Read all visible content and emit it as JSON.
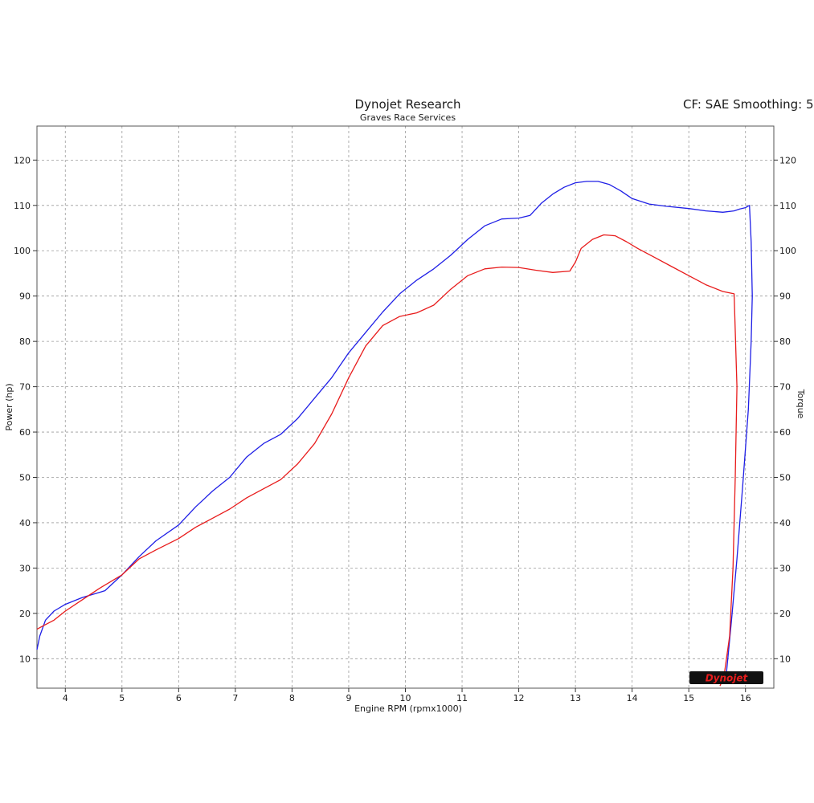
{
  "header": {
    "title": "Dynojet Research",
    "subtitle": "Graves Race Services",
    "cf_label": "CF: SAE Smoothing: 5"
  },
  "logo_text": "Dynojet",
  "chart_data": {
    "type": "line",
    "title": "Dynojet Research",
    "subtitle": "Graves Race Services",
    "xlabel": "Engine RPM (rpmx1000)",
    "ylabel": "Power (hp)",
    "y2label": "Torque",
    "xlim": [
      3.5,
      16.5
    ],
    "ylim": [
      3.5,
      127.5
    ],
    "xticks": [
      4,
      5,
      6,
      7,
      8,
      9,
      10,
      11,
      12,
      13,
      14,
      15,
      16
    ],
    "yticks": [
      10,
      20,
      30,
      40,
      50,
      60,
      70,
      80,
      90,
      100,
      110,
      120
    ],
    "grid": true,
    "colors": {
      "blue": "#1f1fe6",
      "red": "#e81c1c"
    },
    "series": [
      {
        "color": "#1f1fe6",
        "x": [
          3.5,
          3.55,
          3.65,
          3.8,
          4.0,
          4.3,
          4.7,
          5.0,
          5.3,
          5.6,
          6.0,
          6.3,
          6.6,
          6.9,
          7.2,
          7.5,
          7.8,
          8.1,
          8.4,
          8.7,
          9.0,
          9.3,
          9.6,
          9.9,
          10.2,
          10.5,
          10.8,
          11.1,
          11.4,
          11.7,
          12.0,
          12.2,
          12.4,
          12.6,
          12.8,
          13.0,
          13.2,
          13.4,
          13.6,
          13.8,
          14.0,
          14.3,
          14.6,
          15.0,
          15.3,
          15.6,
          15.8,
          15.9,
          16.0,
          16.07,
          16.1,
          16.12,
          16.1,
          16.05,
          15.95,
          15.85,
          15.75,
          15.65
        ],
        "y": [
          12,
          15,
          18.5,
          20.5,
          22,
          23.5,
          25,
          28.5,
          32.5,
          36,
          39.5,
          43.5,
          47,
          50,
          54.5,
          57.5,
          59.5,
          63,
          67.5,
          72,
          77.5,
          82,
          86.5,
          90.5,
          93.5,
          96,
          99,
          102.5,
          105.5,
          107,
          107.2,
          107.8,
          110.5,
          112.5,
          114,
          115,
          115.3,
          115.3,
          114.6,
          113.2,
          111.5,
          110.3,
          109.8,
          109.3,
          108.8,
          108.5,
          108.8,
          109.2,
          109.5,
          110,
          102,
          90,
          80,
          65,
          48,
          32,
          18,
          5
        ]
      },
      {
        "color": "#e81c1c",
        "x": [
          3.5,
          3.6,
          3.8,
          4.0,
          4.3,
          4.6,
          5.0,
          5.3,
          5.6,
          6.0,
          6.3,
          6.6,
          6.9,
          7.2,
          7.5,
          7.8,
          8.1,
          8.4,
          8.7,
          9.0,
          9.3,
          9.6,
          9.9,
          10.2,
          10.5,
          10.8,
          11.1,
          11.4,
          11.7,
          12.0,
          12.3,
          12.6,
          12.9,
          13.0,
          13.1,
          13.3,
          13.5,
          13.7,
          13.9,
          14.1,
          14.4,
          14.7,
          15.0,
          15.3,
          15.6,
          15.8,
          15.85,
          15.82,
          15.78,
          15.72,
          15.62,
          15.55
        ],
        "y": [
          16.5,
          17.2,
          18.5,
          20.5,
          23,
          25.5,
          28.5,
          32,
          34,
          36.5,
          39,
          41,
          43,
          45.5,
          47.5,
          49.5,
          53,
          57.5,
          64,
          72,
          79,
          83.5,
          85.5,
          86.3,
          88,
          91.5,
          94.5,
          96,
          96.4,
          96.3,
          95.7,
          95.2,
          95.5,
          97.5,
          100.5,
          102.5,
          103.5,
          103.3,
          102,
          100.5,
          98.5,
          96.5,
          94.5,
          92.5,
          91,
          90.5,
          70,
          50,
          30,
          15,
          6,
          4
        ]
      }
    ]
  }
}
